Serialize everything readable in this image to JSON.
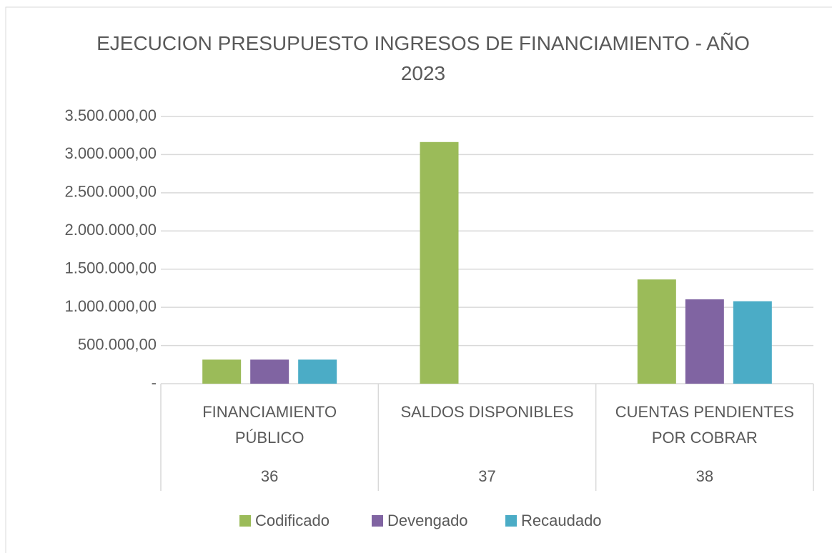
{
  "chart_data": {
    "type": "bar",
    "title": "EJECUCION PRESUPUESTO INGRESOS DE FINANCIAMIENTO - AÑO 2023",
    "categories": [
      "FINANCIAMIENTO PÚBLICO",
      "SALDOS DISPONIBLES",
      "CUENTAS PENDIENTES POR COBRAR"
    ],
    "category_groups": [
      "36",
      "37",
      "38"
    ],
    "series": [
      {
        "name": "Codificado",
        "color": "#9bbb59",
        "values": [
          315000,
          3165000,
          1365000
        ]
      },
      {
        "name": "Devengado",
        "color": "#8064a2",
        "values": [
          315000,
          0,
          1105000
        ]
      },
      {
        "name": "Recaudado",
        "color": "#4bacc6",
        "values": [
          315000,
          0,
          1080000
        ]
      }
    ],
    "ylim": [
      0,
      3500000
    ],
    "yticks": [
      {
        "value": 0,
        "label": "-"
      },
      {
        "value": 500000,
        "label": "500.000,00"
      },
      {
        "value": 1000000,
        "label": "1.000.000,00"
      },
      {
        "value": 1500000,
        "label": "1.500.000,00"
      },
      {
        "value": 2000000,
        "label": "2.000.000,00"
      },
      {
        "value": 2500000,
        "label": "2.500.000,00"
      },
      {
        "value": 3000000,
        "label": "3.000.000,00"
      },
      {
        "value": 3500000,
        "label": "3.500.000,00"
      }
    ],
    "grid": true,
    "legend": "bottom"
  }
}
